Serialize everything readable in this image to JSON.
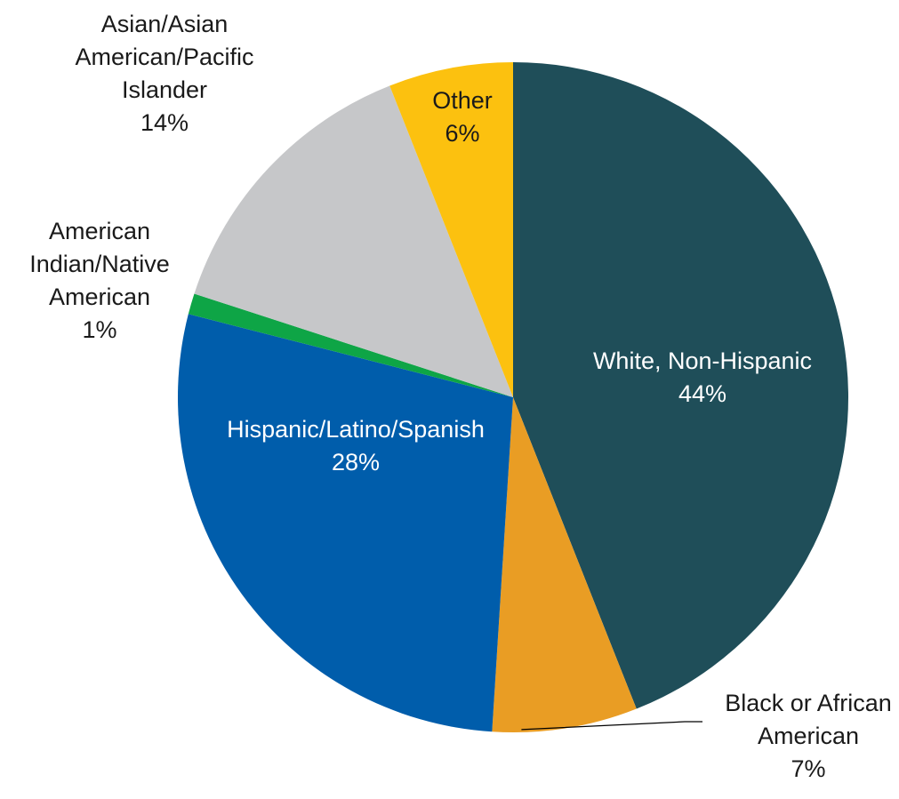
{
  "chart_data": {
    "type": "pie",
    "start": "12 o'clock",
    "direction": "clockwise",
    "slices": [
      {
        "name": "White, Non-Hispanic",
        "value": 44,
        "label": "44%",
        "color": "#1f4e59",
        "label_color": "#ffffff",
        "label_lines": [
          "White, Non-Hispanic",
          "44%"
        ],
        "label_position": "inside"
      },
      {
        "name": "Black or African American",
        "value": 7,
        "label": "7%",
        "color": "#e99d24",
        "label_color": "#1a1a1a",
        "label_lines": [
          "Black or African",
          "American",
          "7%"
        ],
        "label_position": "outside"
      },
      {
        "name": "Hispanic/Latino/Spanish",
        "value": 28,
        "label": "28%",
        "color": "#005dab",
        "label_color": "#ffffff",
        "label_lines": [
          "Hispanic/Latino/Spanish",
          "28%"
        ],
        "label_position": "inside"
      },
      {
        "name": "American Indian/Native American",
        "value": 1,
        "label": "1%",
        "color": "#0ea546",
        "label_color": "#1a1a1a",
        "label_lines": [
          "American",
          "Indian/Native",
          "American",
          "1%"
        ],
        "label_position": "outside"
      },
      {
        "name": "Asian/Asian American/Pacific Islander",
        "value": 14,
        "label": "14%",
        "color": "#c6c7c9",
        "label_color": "#1a1a1a",
        "label_lines": [
          "Asian/Asian",
          "American/Pacific",
          "Islander",
          "14%"
        ],
        "label_position": "outside"
      },
      {
        "name": "Other",
        "value": 6,
        "label": "6%",
        "color": "#fcc10f",
        "label_color": "#1a1a1a",
        "label_lines": [
          "Other",
          "6%"
        ],
        "label_position": "inside"
      }
    ]
  }
}
